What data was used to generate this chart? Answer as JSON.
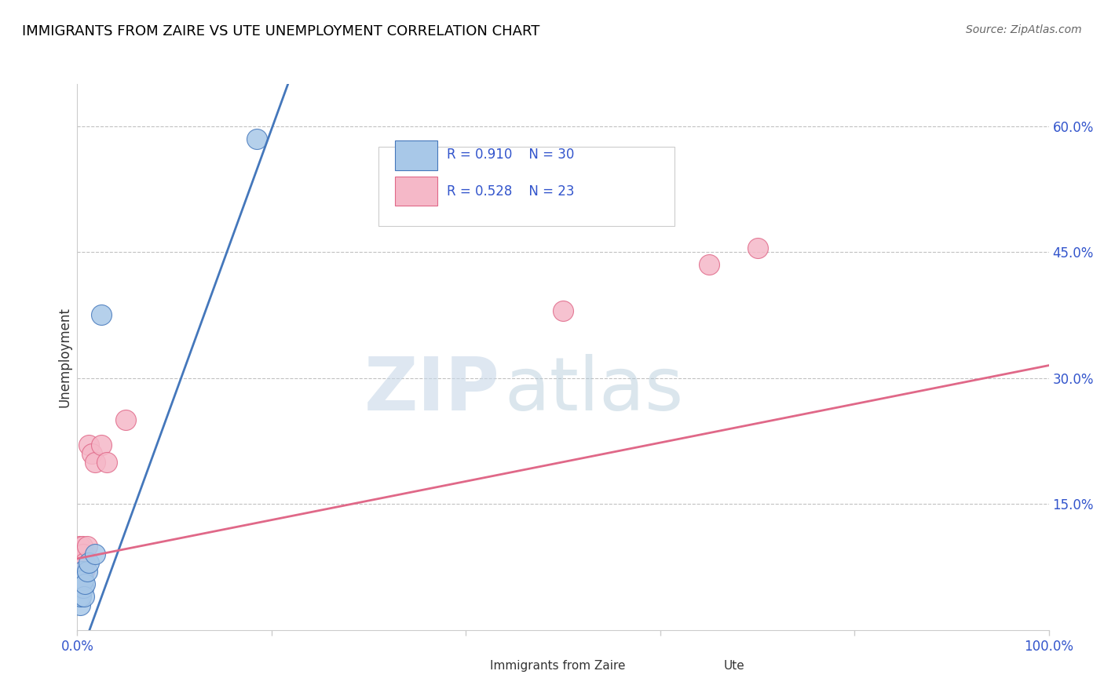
{
  "title": "IMMIGRANTS FROM ZAIRE VS UTE UNEMPLOYMENT CORRELATION CHART",
  "source": "Source: ZipAtlas.com",
  "ylabel": "Unemployment",
  "ytick_labels": [
    "60.0%",
    "45.0%",
    "30.0%",
    "15.0%"
  ],
  "ytick_values": [
    0.6,
    0.45,
    0.3,
    0.15
  ],
  "xlim": [
    0.0,
    1.0
  ],
  "ylim": [
    0.0,
    0.65
  ],
  "blue_R": "0.910",
  "blue_N": 30,
  "pink_R": "0.528",
  "pink_N": 23,
  "blue_color": "#a8c8e8",
  "pink_color": "#f5b8c8",
  "blue_line_color": "#4477bb",
  "pink_line_color": "#e06888",
  "legend_label_blue": "Immigrants from Zaire",
  "legend_label_pink": "Ute",
  "watermark_zip": "ZIP",
  "watermark_atlas": "atlas",
  "blue_scatter_x": [
    0.001,
    0.001,
    0.001,
    0.001,
    0.001,
    0.002,
    0.002,
    0.002,
    0.002,
    0.002,
    0.002,
    0.003,
    0.003,
    0.003,
    0.003,
    0.003,
    0.004,
    0.004,
    0.004,
    0.005,
    0.005,
    0.006,
    0.006,
    0.007,
    0.008,
    0.01,
    0.012,
    0.018,
    0.025,
    0.185
  ],
  "blue_scatter_y": [
    0.04,
    0.05,
    0.06,
    0.05,
    0.04,
    0.05,
    0.06,
    0.04,
    0.05,
    0.06,
    0.04,
    0.05,
    0.06,
    0.04,
    0.05,
    0.03,
    0.05,
    0.06,
    0.04,
    0.06,
    0.07,
    0.05,
    0.06,
    0.04,
    0.055,
    0.07,
    0.08,
    0.09,
    0.375,
    0.585
  ],
  "pink_scatter_x": [
    0.001,
    0.001,
    0.002,
    0.002,
    0.003,
    0.003,
    0.004,
    0.004,
    0.005,
    0.005,
    0.006,
    0.007,
    0.008,
    0.01,
    0.012,
    0.015,
    0.018,
    0.025,
    0.03,
    0.05,
    0.5,
    0.65,
    0.7
  ],
  "pink_scatter_y": [
    0.05,
    0.09,
    0.07,
    0.1,
    0.07,
    0.08,
    0.06,
    0.09,
    0.08,
    0.1,
    0.09,
    0.07,
    0.08,
    0.1,
    0.22,
    0.21,
    0.2,
    0.22,
    0.2,
    0.25,
    0.38,
    0.435,
    0.455
  ],
  "blue_line_x": [
    0.0,
    0.22
  ],
  "blue_line_y": [
    -0.04,
    0.66
  ],
  "pink_line_x": [
    0.0,
    1.0
  ],
  "pink_line_y": [
    0.085,
    0.315
  ]
}
